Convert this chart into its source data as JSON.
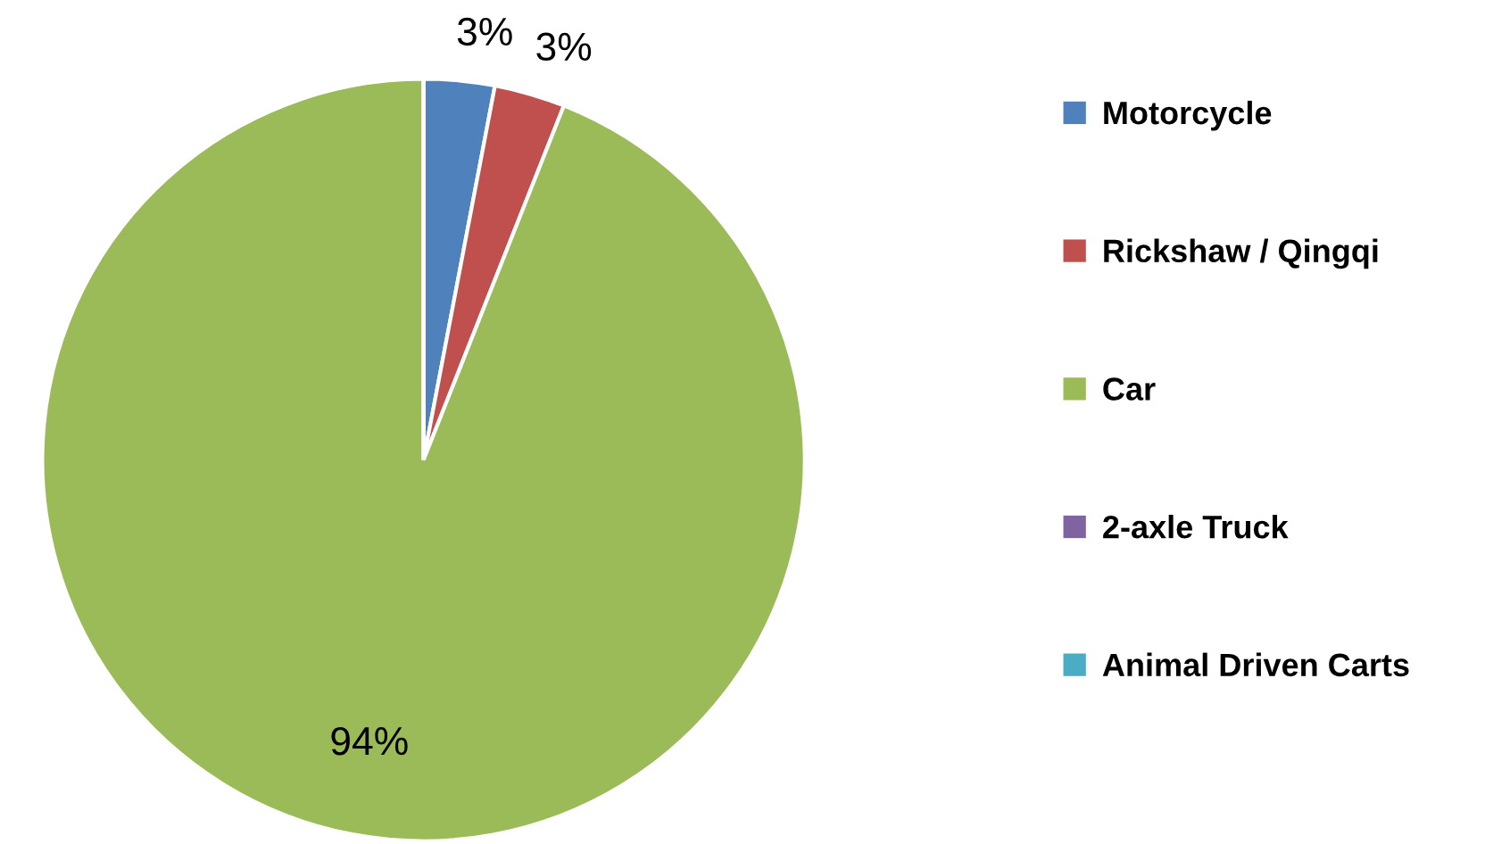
{
  "chart_data": {
    "type": "pie",
    "categories": [
      "Motorcycle",
      "Rickshaw / Qingqi",
      "Car",
      "2-axle Truck",
      "Animal Driven Carts"
    ],
    "values": [
      3,
      3,
      94,
      0,
      0
    ],
    "value_labels": [
      "3%",
      "3%",
      "94%",
      null,
      null
    ],
    "colors": [
      "#4f81bd",
      "#c0504d",
      "#9bbb59",
      "#8064a2",
      "#4bacc6"
    ],
    "legend": "right"
  }
}
